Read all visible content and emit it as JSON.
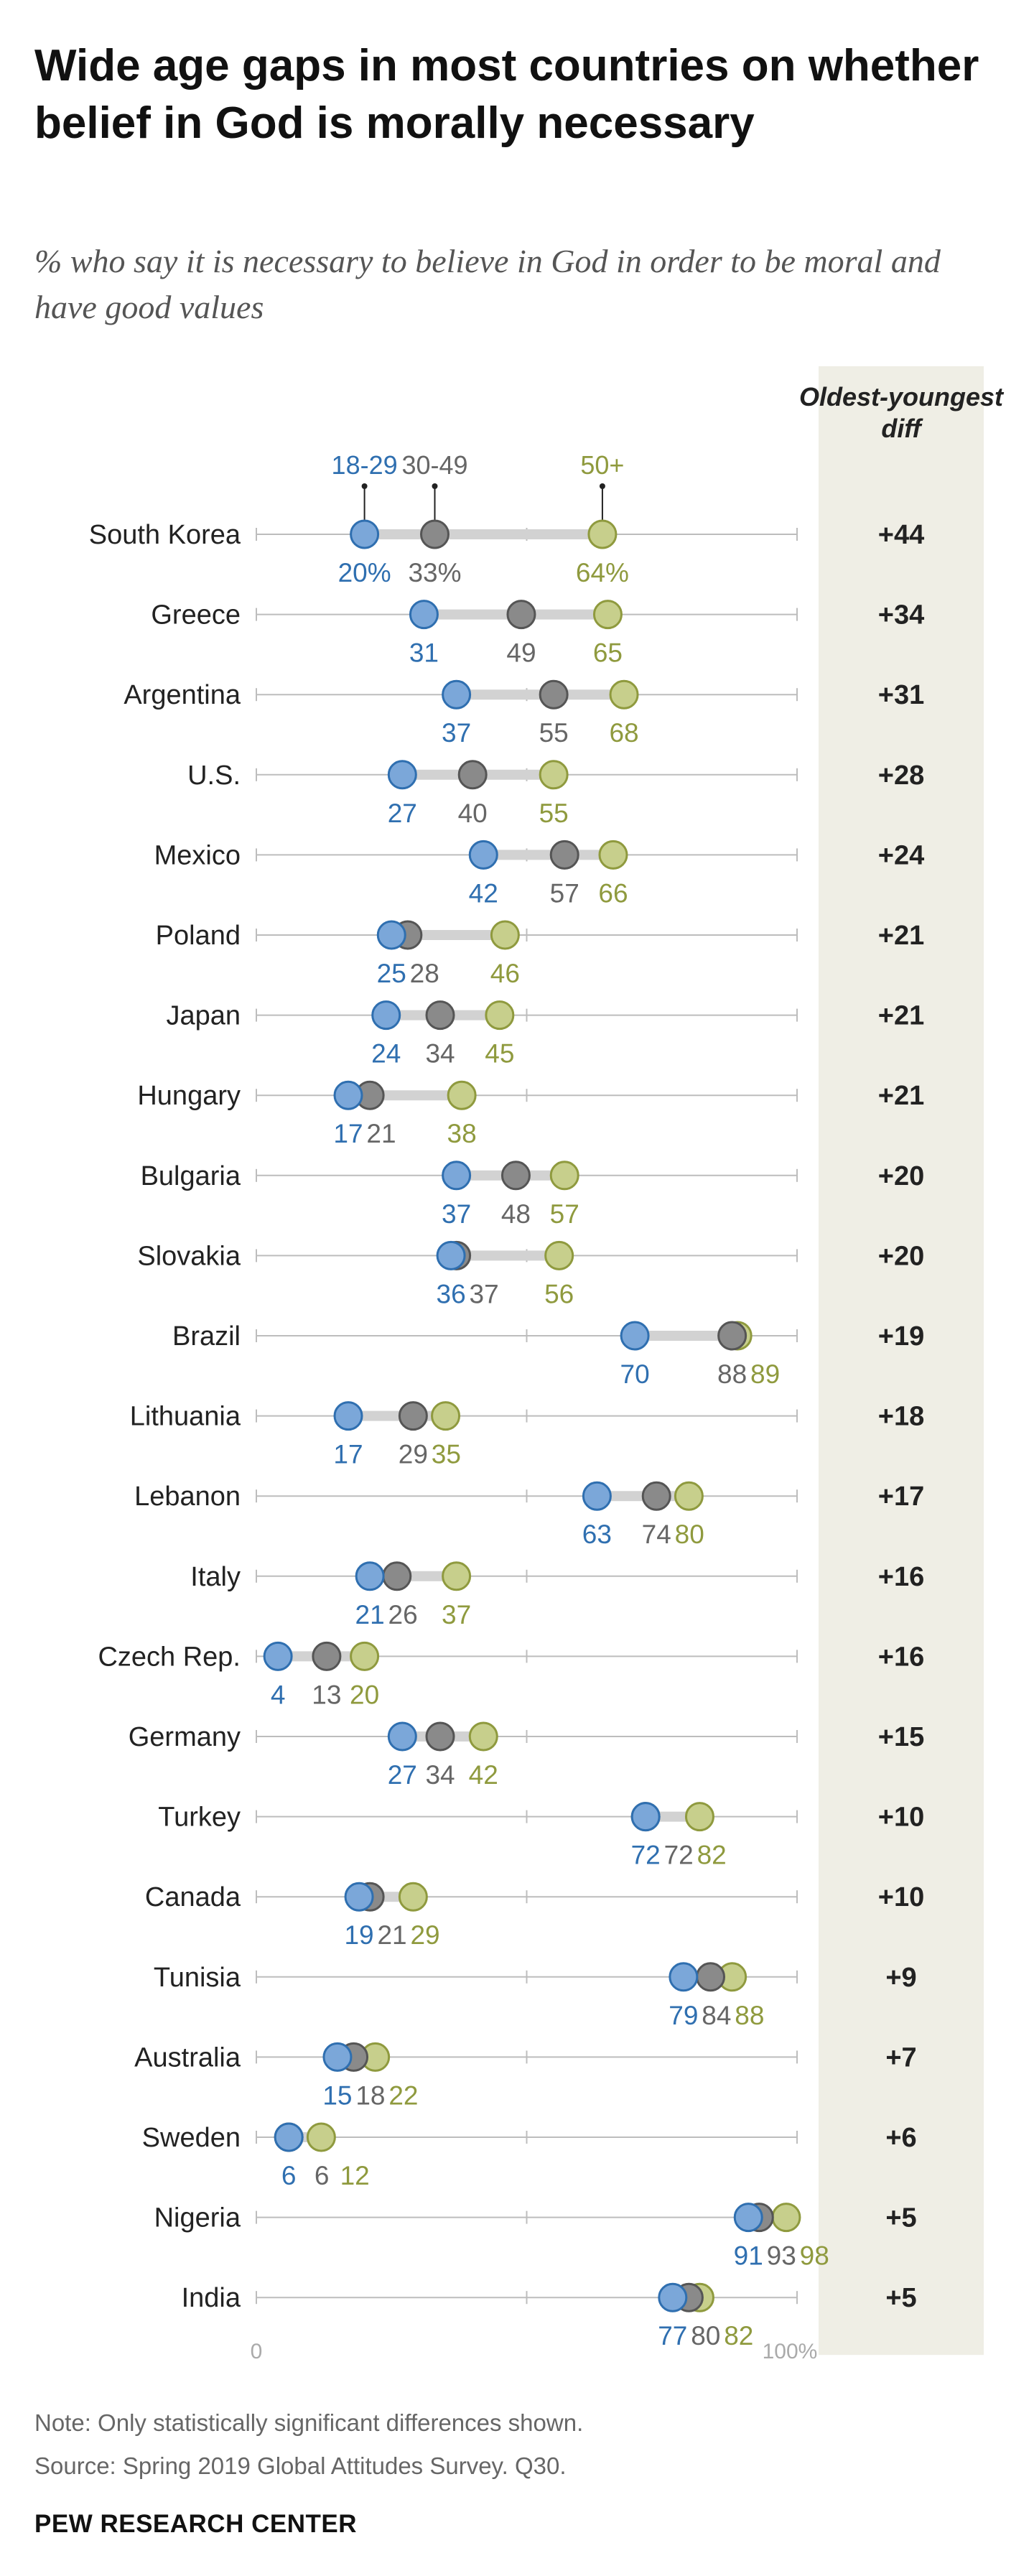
{
  "title": "Wide age gaps in most countries on whether belief in God is morally necessary",
  "subtitle": "% who say it is necessary to believe in God in order to be moral and have good values",
  "note": "Note: Only statistically significant differences shown.",
  "source": "Source: Spring 2019 Global Attitudes Survey. Q30.",
  "footer": "PEW RESEARCH CENTER",
  "chart_data": {
    "type": "scatter",
    "subtype": "dot-plot",
    "xlim": [
      0,
      100
    ],
    "axis_labels": [
      "0",
      "100%"
    ],
    "diff_header": "Oldest-youngest diff",
    "series": [
      {
        "name": "18-29",
        "color": "#7ba7d9",
        "stroke": "#2f6fb0",
        "label_color": "#2f6fb0"
      },
      {
        "name": "30-49",
        "color": "#8a8a8a",
        "stroke": "#555555",
        "label_color": "#666666"
      },
      {
        "name": "50+",
        "color": "#c7cf8c",
        "stroke": "#8f9a3e",
        "label_color": "#8f9a3e"
      }
    ],
    "rows": [
      {
        "country": "South Korea",
        "values": [
          20,
          33,
          64
        ],
        "labels": [
          "20%",
          "33%",
          "64%"
        ],
        "diff": "+44"
      },
      {
        "country": "Greece",
        "values": [
          31,
          49,
          65
        ],
        "labels": [
          "31",
          "49",
          "65"
        ],
        "diff": "+34"
      },
      {
        "country": "Argentina",
        "values": [
          37,
          55,
          68
        ],
        "labels": [
          "37",
          "55",
          "68"
        ],
        "diff": "+31"
      },
      {
        "country": "U.S.",
        "values": [
          27,
          40,
          55
        ],
        "labels": [
          "27",
          "40",
          "55"
        ],
        "diff": "+28"
      },
      {
        "country": "Mexico",
        "values": [
          42,
          57,
          66
        ],
        "labels": [
          "42",
          "57",
          "66"
        ],
        "diff": "+24"
      },
      {
        "country": "Poland",
        "values": [
          25,
          28,
          46
        ],
        "labels": [
          "25",
          "28",
          "46"
        ],
        "diff": "+21"
      },
      {
        "country": "Japan",
        "values": [
          24,
          34,
          45
        ],
        "labels": [
          "24",
          "34",
          "45"
        ],
        "diff": "+21"
      },
      {
        "country": "Hungary",
        "values": [
          17,
          21,
          38
        ],
        "labels": [
          "17",
          "21",
          "38"
        ],
        "diff": "+21"
      },
      {
        "country": "Bulgaria",
        "values": [
          37,
          48,
          57
        ],
        "labels": [
          "37",
          "48",
          "57"
        ],
        "diff": "+20"
      },
      {
        "country": "Slovakia",
        "values": [
          36,
          37,
          56
        ],
        "labels": [
          "36",
          "37",
          "56"
        ],
        "diff": "+20"
      },
      {
        "country": "Brazil",
        "values": [
          70,
          88,
          89
        ],
        "labels": [
          "70",
          "88",
          "89"
        ],
        "diff": "+19"
      },
      {
        "country": "Lithuania",
        "values": [
          17,
          29,
          35
        ],
        "labels": [
          "17",
          "29",
          "35"
        ],
        "diff": "+18"
      },
      {
        "country": "Lebanon",
        "values": [
          63,
          74,
          80
        ],
        "labels": [
          "63",
          "74",
          "80"
        ],
        "diff": "+17"
      },
      {
        "country": "Italy",
        "values": [
          21,
          26,
          37
        ],
        "labels": [
          "21",
          "26",
          "37"
        ],
        "diff": "+16"
      },
      {
        "country": "Czech Rep.",
        "values": [
          4,
          13,
          20
        ],
        "labels": [
          "4",
          "13",
          "20"
        ],
        "diff": "+16"
      },
      {
        "country": "Germany",
        "values": [
          27,
          34,
          42
        ],
        "labels": [
          "27",
          "34",
          "42"
        ],
        "diff": "+15"
      },
      {
        "country": "Turkey",
        "values": [
          72,
          72,
          82
        ],
        "labels": [
          "72",
          "72",
          "82"
        ],
        "diff": "+10"
      },
      {
        "country": "Canada",
        "values": [
          19,
          21,
          29
        ],
        "labels": [
          "19",
          "21",
          "29"
        ],
        "diff": "+10"
      },
      {
        "country": "Tunisia",
        "values": [
          79,
          84,
          88
        ],
        "labels": [
          "79",
          "84",
          "88"
        ],
        "diff": "+9"
      },
      {
        "country": "Australia",
        "values": [
          15,
          18,
          22
        ],
        "labels": [
          "15",
          "18",
          "22"
        ],
        "diff": "+7"
      },
      {
        "country": "Sweden",
        "values": [
          6,
          6,
          12
        ],
        "labels": [
          "6",
          "6",
          "12"
        ],
        "diff": "+6"
      },
      {
        "country": "Nigeria",
        "values": [
          91,
          93,
          98
        ],
        "labels": [
          "91",
          "93",
          "98"
        ],
        "diff": "+5"
      },
      {
        "country": "India",
        "values": [
          77,
          80,
          82
        ],
        "labels": [
          "77",
          "80",
          "82"
        ],
        "diff": "+5"
      }
    ]
  }
}
